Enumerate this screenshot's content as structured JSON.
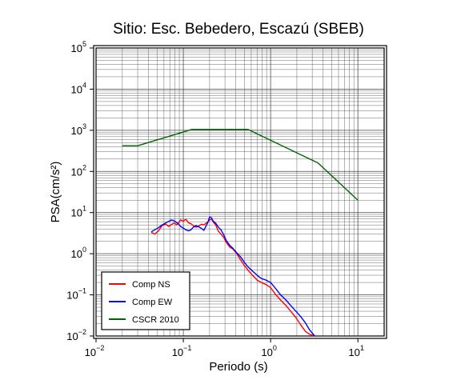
{
  "chart_data": {
    "type": "line",
    "title": "Sitio: Esc. Bebedero, Escazú (SBEB)",
    "xlabel": "Periodo (s)",
    "ylabel": "PSA(cm/s²)",
    "x_scale": "log",
    "y_scale": "log",
    "xlim": [
      0.01,
      20
    ],
    "ylim": [
      0.01,
      100000
    ],
    "grid": true,
    "legend_position": "bottom-left",
    "x_ticks": [
      {
        "base": "10",
        "exp": "−2"
      },
      {
        "base": "10",
        "exp": "−1"
      },
      {
        "base": "10",
        "exp": "0"
      },
      {
        "base": "10",
        "exp": "1"
      }
    ],
    "y_ticks": [
      {
        "base": "10",
        "exp": "−2"
      },
      {
        "base": "10",
        "exp": "−1"
      },
      {
        "base": "10",
        "exp": "0"
      },
      {
        "base": "10",
        "exp": "1"
      },
      {
        "base": "10",
        "exp": "2"
      },
      {
        "base": "10",
        "exp": "3"
      },
      {
        "base": "10",
        "exp": "4"
      },
      {
        "base": "10",
        "exp": "5"
      }
    ],
    "series": [
      {
        "name": "Comp NS",
        "color": "#ff0000",
        "x": [
          0.043,
          0.047,
          0.052,
          0.057,
          0.063,
          0.068,
          0.073,
          0.079,
          0.084,
          0.088,
          0.093,
          0.1,
          0.107,
          0.115,
          0.122,
          0.13,
          0.14,
          0.15,
          0.162,
          0.172,
          0.18,
          0.19,
          0.2,
          0.21,
          0.22,
          0.235,
          0.25,
          0.27,
          0.29,
          0.31,
          0.34,
          0.37,
          0.41,
          0.45,
          0.5,
          0.55,
          0.62,
          0.7,
          0.78,
          0.88,
          1.0,
          1.15,
          1.3,
          1.5,
          1.7,
          1.95,
          2.2,
          2.5,
          2.8,
          3.2
        ],
        "y": [
          3.3,
          3.0,
          3.6,
          4.8,
          5.2,
          4.6,
          5.1,
          5.6,
          5.0,
          5.6,
          6.6,
          6.2,
          6.9,
          5.6,
          5.4,
          4.8,
          4.4,
          4.7,
          5.2,
          5.0,
          5.4,
          5.9,
          6.6,
          7.0,
          5.9,
          5.0,
          3.6,
          3.0,
          2.5,
          1.9,
          1.45,
          1.3,
          1.0,
          0.72,
          0.52,
          0.4,
          0.3,
          0.23,
          0.2,
          0.18,
          0.15,
          0.1,
          0.075,
          0.055,
          0.04,
          0.028,
          0.019,
          0.013,
          0.011,
          0.01
        ]
      },
      {
        "name": "Comp EW",
        "color": "#0000ff",
        "x": [
          0.043,
          0.047,
          0.052,
          0.057,
          0.063,
          0.068,
          0.073,
          0.079,
          0.084,
          0.088,
          0.093,
          0.1,
          0.107,
          0.115,
          0.122,
          0.13,
          0.14,
          0.15,
          0.162,
          0.172,
          0.18,
          0.19,
          0.2,
          0.21,
          0.22,
          0.235,
          0.25,
          0.27,
          0.29,
          0.31,
          0.34,
          0.37,
          0.41,
          0.45,
          0.5,
          0.55,
          0.62,
          0.7,
          0.78,
          0.88,
          1.0,
          1.15,
          1.3,
          1.5,
          1.7,
          1.95,
          2.2,
          2.5,
          2.8,
          3.2
        ],
        "y": [
          3.4,
          3.8,
          4.3,
          5.0,
          5.6,
          6.1,
          6.6,
          6.3,
          5.7,
          5.3,
          4.6,
          4.2,
          3.8,
          3.6,
          3.8,
          4.4,
          4.8,
          4.5,
          4.1,
          3.7,
          4.5,
          5.6,
          7.8,
          7.5,
          6.2,
          5.5,
          4.5,
          3.8,
          2.9,
          2.1,
          1.6,
          1.35,
          1.05,
          0.85,
          0.62,
          0.48,
          0.38,
          0.3,
          0.25,
          0.23,
          0.2,
          0.14,
          0.1,
          0.075,
          0.055,
          0.04,
          0.03,
          0.021,
          0.014,
          0.01
        ]
      },
      {
        "name": "CSCR 2010",
        "color": "#006400",
        "x": [
          0.02,
          0.03,
          0.125,
          0.55,
          3.5,
          10
        ],
        "y": [
          420,
          420,
          1050,
          1050,
          160,
          20
        ]
      }
    ]
  }
}
